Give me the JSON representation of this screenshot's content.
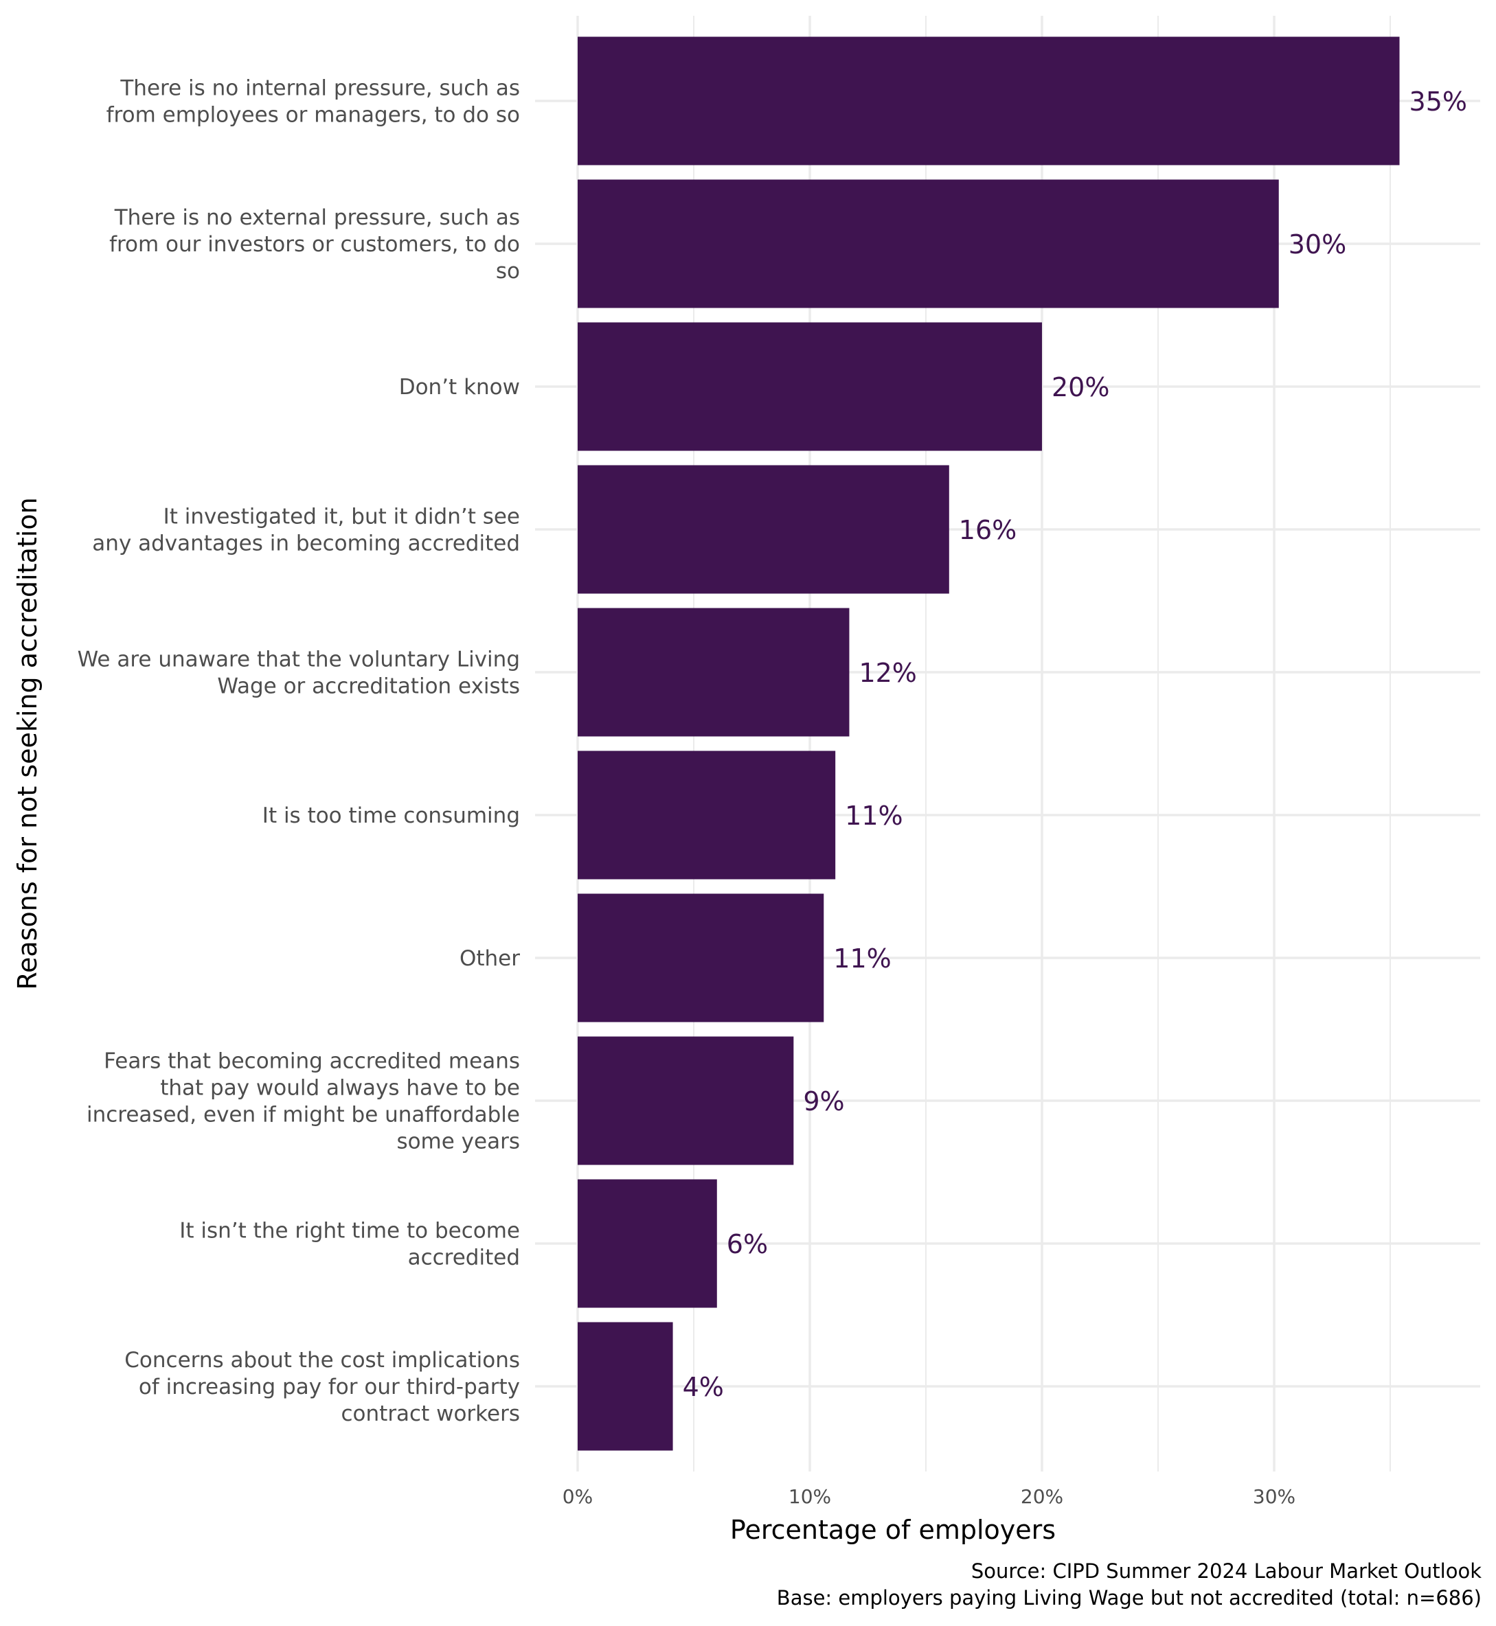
{
  "colors": {
    "bar": "#3f1450",
    "value_label": "#3f1450",
    "grid_major": "#ebebeb",
    "grid_minor": "#f3f3f3",
    "axis_text": "#4d4d4d",
    "title_text": "#000000"
  },
  "chart_data": {
    "type": "bar",
    "orientation": "horizontal",
    "title": "",
    "xlabel": "Percentage of employers",
    "ylabel": "Reasons for not seeking accreditation",
    "xlim": [
      0,
      38.5
    ],
    "x_ticks": [
      0,
      10,
      20,
      30
    ],
    "x_tick_labels": [
      "0%",
      "10%",
      "20%",
      "30%"
    ],
    "grid": true,
    "categories": [
      [
        "There is no internal pressure, such as",
        "from employees or managers, to do so"
      ],
      [
        "There is no external pressure, such as",
        "from our investors or customers, to do",
        "so"
      ],
      [
        "Don’t know"
      ],
      [
        "It investigated it, but it didn’t see",
        "any advantages in becoming accredited"
      ],
      [
        "We are unaware that the voluntary Living",
        "Wage or accreditation exists"
      ],
      [
        "It is too time consuming"
      ],
      [
        "Other"
      ],
      [
        "Fears that becoming accredited means",
        "that pay would always have to be",
        "increased, even if might be unaffordable",
        "some years"
      ],
      [
        "It isn’t the right time to become",
        "accredited"
      ],
      [
        "Concerns about the cost implications",
        "of increasing pay for our third-party",
        "contract workers"
      ]
    ],
    "values": [
      35.4,
      30.2,
      20.0,
      16.0,
      11.7,
      11.1,
      10.6,
      9.3,
      6.0,
      4.1
    ],
    "value_labels": [
      "35%",
      "30%",
      "20%",
      "16%",
      "12%",
      "11%",
      "11%",
      "9%",
      "6%",
      "4%"
    ],
    "caption": [
      "Source: CIPD Summer 2024 Labour Market Outlook",
      "Base: employers paying Living Wage but not accredited (total: n=686)"
    ]
  }
}
